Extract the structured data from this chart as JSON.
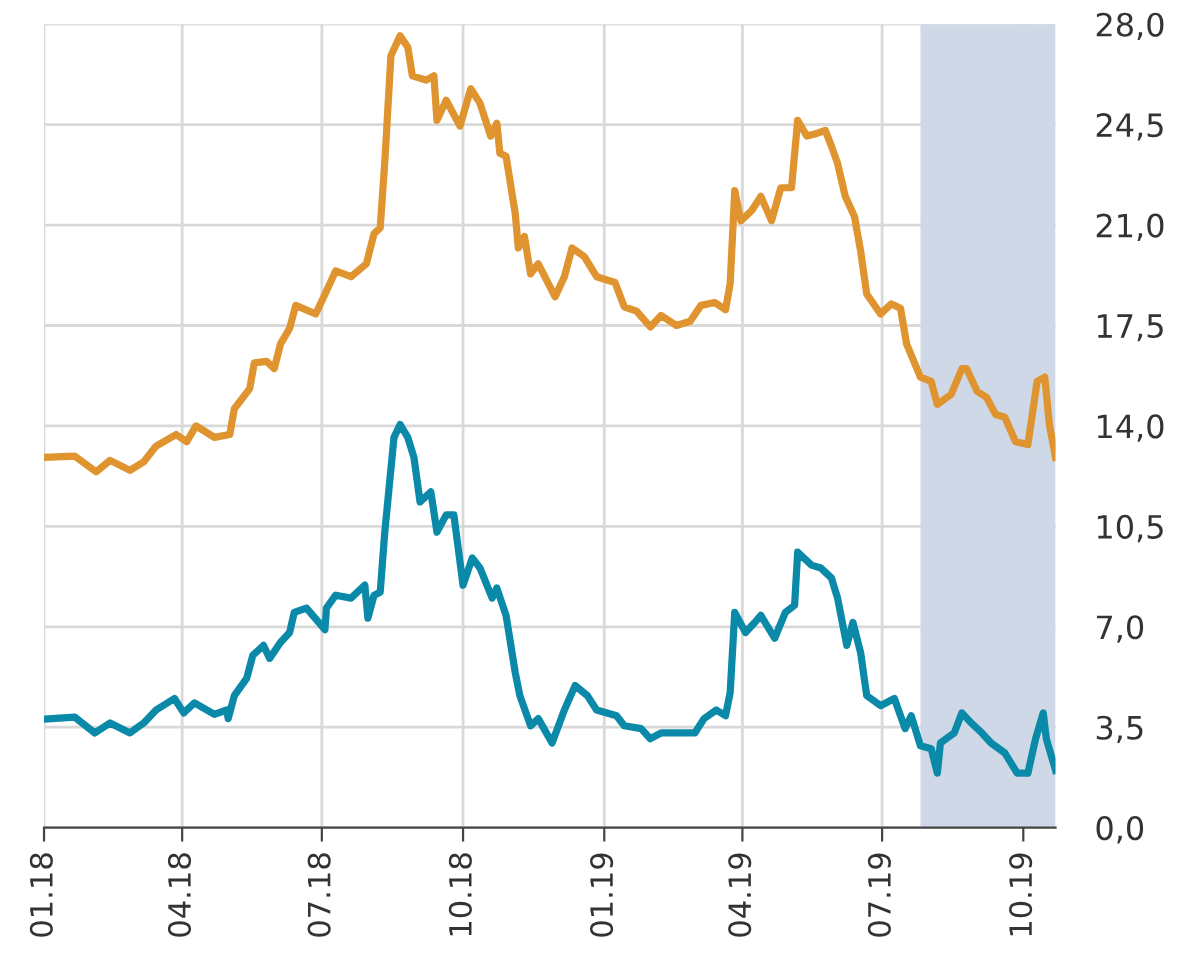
{
  "chart_data": {
    "type": "line",
    "series": [
      {
        "color": "#df9430",
        "x": [
          "2018-01-01",
          "2018-01-21",
          "2018-02-04",
          "2018-02-13",
          "2018-02-26",
          "2018-03-07",
          "2018-03-15",
          "2018-03-28",
          "2018-04-04",
          "2018-04-10",
          "2018-04-22",
          "2018-05-02",
          "2018-05-05",
          "2018-05-15",
          "2018-05-18",
          "2018-05-26",
          "2018-05-31",
          "2018-06-04",
          "2018-06-10",
          "2018-06-14",
          "2018-06-27",
          "2018-07-04",
          "2018-07-10",
          "2018-07-20",
          "2018-07-30",
          "2018-08-04",
          "2018-08-08",
          "2018-08-11",
          "2018-08-15",
          "2018-08-21",
          "2018-08-26",
          "2018-08-29",
          "2018-09-07",
          "2018-09-12",
          "2018-09-14",
          "2018-09-20",
          "2018-09-29",
          "2018-10-06",
          "2018-10-12",
          "2018-10-19",
          "2018-10-23",
          "2018-10-25",
          "2018-10-29",
          "2018-11-04",
          "2018-11-06",
          "2018-11-10",
          "2018-11-14",
          "2018-11-19",
          "2018-11-30",
          "2018-12-06",
          "2018-12-11",
          "2018-12-19",
          "2018-12-27",
          "2019-01-08",
          "2019-01-14",
          "2019-01-22",
          "2019-01-31",
          "2019-02-07",
          "2019-02-17",
          "2019-02-26",
          "2019-03-05",
          "2019-03-14",
          "2019-03-21",
          "2019-03-24",
          "2019-03-27",
          "2019-03-31",
          "2019-04-07",
          "2019-04-13",
          "2019-04-20",
          "2019-04-26",
          "2019-05-03",
          "2019-05-07",
          "2019-05-13",
          "2019-05-20",
          "2019-05-25",
          "2019-05-29",
          "2019-06-02",
          "2019-06-07",
          "2019-06-13",
          "2019-06-17",
          "2019-06-21",
          "2019-06-30",
          "2019-07-07",
          "2019-07-13",
          "2019-07-17",
          "2019-07-26",
          "2019-08-02",
          "2019-08-06",
          "2019-08-15",
          "2019-08-22",
          "2019-08-25",
          "2019-09-01",
          "2019-09-07",
          "2019-09-13",
          "2019-09-19",
          "2019-09-26",
          "2019-10-04",
          "2019-10-10",
          "2019-10-15",
          "2019-10-18",
          "2019-10-22"
        ],
        "values": [
          12.9,
          12.95,
          12.4,
          12.8,
          12.45,
          12.75,
          13.3,
          13.7,
          13.45,
          14.0,
          13.6,
          13.7,
          14.6,
          15.3,
          16.2,
          16.25,
          16.0,
          16.85,
          17.4,
          18.2,
          17.9,
          18.7,
          19.4,
          19.2,
          19.65,
          20.7,
          20.9,
          23.2,
          26.9,
          27.6,
          27.2,
          26.2,
          26.05,
          26.2,
          24.65,
          25.35,
          24.45,
          25.75,
          25.25,
          24.1,
          24.55,
          23.5,
          23.4,
          21.4,
          20.2,
          20.6,
          19.3,
          19.65,
          18.5,
          19.2,
          20.2,
          19.9,
          19.2,
          19.0,
          18.15,
          18.0,
          17.45,
          17.85,
          17.5,
          17.65,
          18.2,
          18.3,
          18.05,
          18.95,
          22.2,
          21.15,
          21.5,
          22.0,
          21.15,
          22.3,
          22.3,
          24.65,
          24.1,
          24.2,
          24.3,
          23.75,
          23.15,
          22.0,
          21.3,
          20.1,
          18.6,
          17.9,
          18.25,
          18.1,
          16.85,
          15.7,
          15.55,
          14.75,
          15.1,
          16.0,
          16.0,
          15.2,
          15.0,
          14.4,
          14.3,
          13.45,
          13.35,
          15.55,
          15.7,
          14.05,
          12.9
        ]
      },
      {
        "color": "#0a8aa8",
        "x": [
          "2018-01-01",
          "2018-01-21",
          "2018-02-03",
          "2018-02-13",
          "2018-02-26",
          "2018-03-07",
          "2018-03-15",
          "2018-03-27",
          "2018-04-02",
          "2018-04-09",
          "2018-04-22",
          "2018-04-30",
          "2018-05-01",
          "2018-05-05",
          "2018-05-13",
          "2018-05-17",
          "2018-05-24",
          "2018-05-28",
          "2018-06-04",
          "2018-06-10",
          "2018-06-13",
          "2018-06-21",
          "2018-07-03",
          "2018-07-04",
          "2018-07-10",
          "2018-07-20",
          "2018-07-29",
          "2018-07-31",
          "2018-08-04",
          "2018-08-08",
          "2018-08-11",
          "2018-08-17",
          "2018-08-21",
          "2018-08-26",
          "2018-08-30",
          "2018-09-03",
          "2018-09-10",
          "2018-09-14",
          "2018-09-20",
          "2018-09-25",
          "2018-10-01",
          "2018-10-07",
          "2018-10-12",
          "2018-10-20",
          "2018-10-23",
          "2018-10-29",
          "2018-11-04",
          "2018-11-07",
          "2018-11-14",
          "2018-11-19",
          "2018-11-28",
          "2018-12-06",
          "2018-12-13",
          "2018-12-21",
          "2018-12-27",
          "2019-01-09",
          "2019-01-14",
          "2019-01-25",
          "2019-01-31",
          "2019-02-07",
          "2019-02-17",
          "2019-03-01",
          "2019-03-07",
          "2019-03-15",
          "2019-03-21",
          "2019-03-24",
          "2019-03-27",
          "2019-04-03",
          "2019-04-09",
          "2019-04-13",
          "2019-04-22",
          "2019-04-29",
          "2019-05-05",
          "2019-05-07",
          "2019-05-16",
          "2019-05-22",
          "2019-05-29",
          "2019-06-02",
          "2019-06-08",
          "2019-06-12",
          "2019-06-17",
          "2019-06-21",
          "2019-06-30",
          "2019-07-09",
          "2019-07-16",
          "2019-07-20",
          "2019-07-26",
          "2019-08-02",
          "2019-08-06",
          "2019-08-08",
          "2019-08-17",
          "2019-08-22",
          "2019-08-28",
          "2019-09-04",
          "2019-09-10",
          "2019-09-19",
          "2019-09-27",
          "2019-10-04",
          "2019-10-09",
          "2019-10-14",
          "2019-10-16",
          "2019-10-22"
        ],
        "values": [
          3.78,
          3.85,
          3.3,
          3.65,
          3.3,
          3.65,
          4.1,
          4.5,
          4.0,
          4.35,
          3.95,
          4.1,
          3.8,
          4.6,
          5.2,
          6.0,
          6.35,
          5.9,
          6.45,
          6.8,
          7.5,
          7.65,
          6.9,
          7.65,
          8.1,
          8.0,
          8.45,
          7.3,
          8.1,
          8.2,
          10.3,
          13.6,
          14.05,
          13.6,
          12.9,
          11.35,
          11.7,
          10.3,
          10.9,
          10.9,
          8.45,
          9.4,
          9.05,
          8.0,
          8.35,
          7.4,
          5.4,
          4.6,
          3.55,
          3.8,
          2.95,
          4.1,
          4.95,
          4.6,
          4.1,
          3.9,
          3.55,
          3.45,
          3.1,
          3.3,
          3.3,
          3.3,
          3.8,
          4.1,
          3.9,
          4.7,
          7.5,
          6.8,
          7.15,
          7.4,
          6.6,
          7.5,
          7.75,
          9.6,
          9.15,
          9.05,
          8.7,
          8.0,
          6.35,
          7.15,
          6.1,
          4.6,
          4.25,
          4.5,
          3.45,
          3.9,
          2.85,
          2.75,
          1.9,
          2.95,
          3.3,
          4.0,
          3.65,
          3.3,
          2.95,
          2.6,
          1.9,
          1.9,
          3.1,
          4.0,
          3.1,
          2.0
        ]
      }
    ],
    "xlim": [
      "2018-01-01",
      "2019-10-22"
    ],
    "xticks": [
      {
        "value": "2018-01-01",
        "label": "01.18"
      },
      {
        "value": "2018-04-01",
        "label": "04.18"
      },
      {
        "value": "2018-07-01",
        "label": "07.18"
      },
      {
        "value": "2018-10-01",
        "label": "10.18"
      },
      {
        "value": "2019-01-01",
        "label": "01.19"
      },
      {
        "value": "2019-04-01",
        "label": "04.19"
      },
      {
        "value": "2019-07-01",
        "label": "07.19"
      },
      {
        "value": "2019-10-01",
        "label": "10.19"
      }
    ],
    "ylim": [
      0,
      28
    ],
    "yticks": [
      {
        "value": 0,
        "label": "0,0"
      },
      {
        "value": 3.5,
        "label": "3,5"
      },
      {
        "value": 7,
        "label": "7,0"
      },
      {
        "value": 10.5,
        "label": "10,5"
      },
      {
        "value": 14,
        "label": "14,0"
      },
      {
        "value": 17.5,
        "label": "17,5"
      },
      {
        "value": 21,
        "label": "21,0"
      },
      {
        "value": 24.5,
        "label": "24,5"
      },
      {
        "value": 28,
        "label": "28,0"
      }
    ],
    "bands": [
      {
        "axis": "x",
        "from": "2019-07-26",
        "to": "2019-10-22",
        "color": "#cfd8e6"
      }
    ],
    "grid": true,
    "legend": false
  }
}
